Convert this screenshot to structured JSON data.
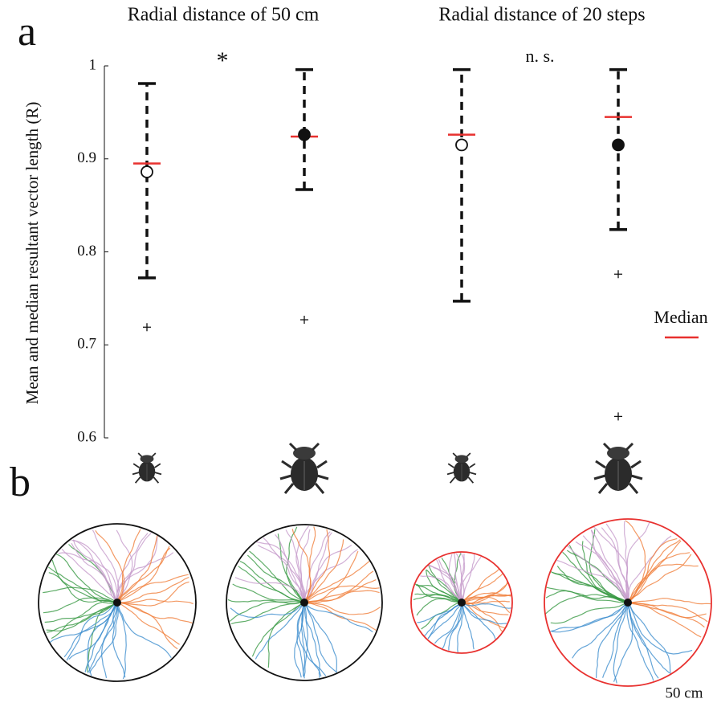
{
  "chart_data": {
    "type": "boxplot",
    "panel_labels": [
      "a",
      "b"
    ],
    "titles": [
      "Radial distance of 50 cm",
      "Radial distance of 20 steps"
    ],
    "ylabel": "Mean and median resultant vector length (R)",
    "ylim": [
      0.6,
      1
    ],
    "yticks": [
      0.6,
      0.7,
      0.8,
      0.9,
      1
    ],
    "whisker_high": [
      0.981,
      0.996,
      0.996,
      0.996
    ],
    "whisker_low": [
      0.772,
      0.867,
      0.747,
      0.824
    ],
    "mean": [
      0.886,
      0.926,
      0.915,
      0.915
    ],
    "mean_fill": [
      "open",
      "filled",
      "open",
      "filled"
    ],
    "median": [
      0.895,
      0.924,
      0.926,
      0.945
    ],
    "median_color": "#e8312f",
    "outliers": [
      [
        0.719
      ],
      [
        0.727
      ],
      [],
      [
        0.776,
        0.623
      ]
    ],
    "annotations": [
      "*",
      "n. s."
    ],
    "legend": "Median",
    "scale_label": "50 cm"
  }
}
